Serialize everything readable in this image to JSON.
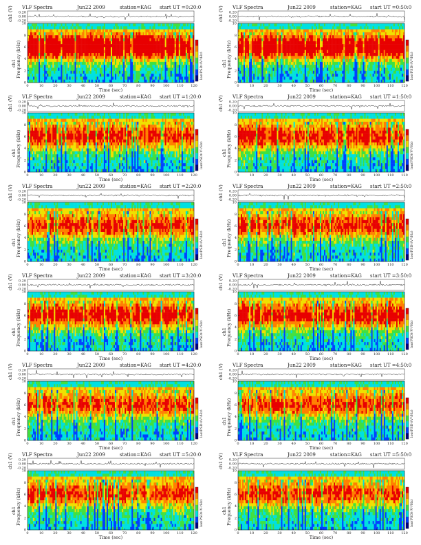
{
  "chart_data": [
    {
      "type": "heatmap",
      "title_left": "VLF Spectra",
      "date": "Jun22 2009",
      "station": "station=KAG",
      "start_ut": "start UT =0:20:0",
      "top_ylabel": "ch1 (V)",
      "top_ticks": [
        "0.20",
        "0.00",
        "-0.20"
      ],
      "ylabel_ch": "ch1",
      "ylabel": "Frequency (kHz)",
      "yticks": [
        "0",
        "2",
        "4",
        "6",
        "8",
        "10"
      ],
      "xlabel": "Time (sec)",
      "xticks": [
        "0",
        "10",
        "20",
        "30",
        "40",
        "50",
        "60",
        "70",
        "80",
        "90",
        "100",
        "110",
        "120"
      ],
      "colorbar_label": "log(PSD)(V²/Hz)",
      "xlim": [
        0,
        120
      ],
      "ylim": [
        0,
        10
      ],
      "seed": 11,
      "intensity": 0.85
    },
    {
      "type": "heatmap",
      "title_left": "VLF Spectra",
      "date": "Jun22 2009",
      "station": "station=KAG",
      "start_ut": "start UT =0:50:0",
      "top_ylabel": "ch1 (V)",
      "top_ticks": [
        "0.20",
        "0.00",
        "-0.20"
      ],
      "ylabel_ch": "ch1",
      "ylabel": "Frequency (kHz)",
      "yticks": [
        "0",
        "2",
        "4",
        "6",
        "8",
        "10"
      ],
      "xlabel": "Time (sec)",
      "xticks": [
        "0",
        "10",
        "20",
        "30",
        "40",
        "50",
        "60",
        "70",
        "80",
        "90",
        "100",
        "110",
        "120"
      ],
      "colorbar_label": "log(PSD)(V²/Hz)",
      "xlim": [
        0,
        120
      ],
      "ylim": [
        0,
        10
      ],
      "seed": 23,
      "intensity": 0.82
    },
    {
      "type": "heatmap",
      "title_left": "VLF Spectra",
      "date": "Jun22 2009",
      "station": "station=KAG",
      "start_ut": "start UT =1:20:0",
      "top_ylabel": "ch1 (V)",
      "top_ticks": [
        "0.20",
        "0.00",
        "-0.20"
      ],
      "ylabel_ch": "ch1",
      "ylabel": "Frequency (kHz)",
      "yticks": [
        "0",
        "2",
        "4",
        "6",
        "8",
        "10"
      ],
      "xlabel": "Time (sec)",
      "xticks": [
        "0",
        "10",
        "20",
        "30",
        "40",
        "50",
        "60",
        "70",
        "80",
        "90",
        "100",
        "110",
        "120"
      ],
      "colorbar_label": "log(PSD)(V²/Hz)",
      "xlim": [
        0,
        120
      ],
      "ylim": [
        0,
        10
      ],
      "seed": 37,
      "intensity": 0.6
    },
    {
      "type": "heatmap",
      "title_left": "VLF Spectra",
      "date": "Jun22 2009",
      "station": "station=KAG",
      "start_ut": "start UT =1:50:0",
      "top_ylabel": "ch1 (V)",
      "top_ticks": [
        "0.20",
        "0.00",
        "-0.20"
      ],
      "ylabel_ch": "ch1",
      "ylabel": "Frequency (kHz)",
      "yticks": [
        "0",
        "2",
        "4",
        "6",
        "8",
        "10"
      ],
      "xlabel": "Time (sec)",
      "xticks": [
        "0",
        "10",
        "20",
        "30",
        "40",
        "50",
        "60",
        "70",
        "80",
        "90",
        "100",
        "110",
        "120"
      ],
      "colorbar_label": "log(PSD)(V²/Hz)",
      "xlim": [
        0,
        120
      ],
      "ylim": [
        0,
        10
      ],
      "seed": 41,
      "intensity": 0.62
    },
    {
      "type": "heatmap",
      "title_left": "VLF Spectra",
      "date": "Jun22 2009",
      "station": "station=KAG",
      "start_ut": "start UT =2:20:0",
      "top_ylabel": "ch1 (V)",
      "top_ticks": [
        "0.20",
        "0.00",
        "-0.20"
      ],
      "ylabel_ch": "ch1",
      "ylabel": "Frequency (kHz)",
      "yticks": [
        "0",
        "2",
        "4",
        "6",
        "8",
        "10"
      ],
      "xlabel": "Time (sec)",
      "xticks": [
        "0",
        "10",
        "20",
        "30",
        "40",
        "50",
        "60",
        "70",
        "80",
        "90",
        "100",
        "110",
        "120"
      ],
      "colorbar_label": "log(PSD)(V²/Hz)",
      "xlim": [
        0,
        120
      ],
      "ylim": [
        0,
        10
      ],
      "seed": 53,
      "intensity": 0.58
    },
    {
      "type": "heatmap",
      "title_left": "VLF Spectra",
      "date": "Jun22 2009",
      "station": "station=KAG",
      "start_ut": "start UT =2:50:0",
      "top_ylabel": "ch1 (V)",
      "top_ticks": [
        "0.20",
        "0.00",
        "-0.20"
      ],
      "ylabel_ch": "ch1",
      "ylabel": "Frequency (kHz)",
      "yticks": [
        "0",
        "2",
        "4",
        "6",
        "8",
        "10"
      ],
      "xlabel": "Time (sec)",
      "xticks": [
        "0",
        "10",
        "20",
        "30",
        "40",
        "50",
        "60",
        "70",
        "80",
        "90",
        "100",
        "110",
        "120"
      ],
      "colorbar_label": "log(PSD)(V²/Hz)",
      "xlim": [
        0,
        120
      ],
      "ylim": [
        0,
        10
      ],
      "seed": 67,
      "intensity": 0.6
    },
    {
      "type": "heatmap",
      "title_left": "VLF Spectra",
      "date": "Jun22 2009",
      "station": "station=KAG",
      "start_ut": "start UT =3:20:0",
      "top_ylabel": "ch1 (V)",
      "top_ticks": [
        "0.20",
        "0.00",
        "-0.20"
      ],
      "ylabel_ch": "ch1",
      "ylabel": "Frequency (kHz)",
      "yticks": [
        "0",
        "2",
        "4",
        "6",
        "8",
        "10"
      ],
      "xlabel": "Time (sec)",
      "xticks": [
        "0",
        "10",
        "20",
        "30",
        "40",
        "50",
        "60",
        "70",
        "80",
        "90",
        "100",
        "110",
        "120"
      ],
      "colorbar_label": "log(PSD)(V²/Hz)",
      "xlim": [
        0,
        120
      ],
      "ylim": [
        0,
        10
      ],
      "seed": 71,
      "intensity": 0.65
    },
    {
      "type": "heatmap",
      "title_left": "VLF Spectra",
      "date": "Jun22 2009",
      "station": "station=KAG",
      "start_ut": "start UT =3:50:0",
      "top_ylabel": "ch1 (V)",
      "top_ticks": [
        "0.20",
        "0.00",
        "-0.20"
      ],
      "ylabel_ch": "ch1",
      "ylabel": "Frequency (kHz)",
      "yticks": [
        "0",
        "2",
        "4",
        "6",
        "8",
        "10"
      ],
      "xlabel": "Time (sec)",
      "xticks": [
        "0",
        "10",
        "20",
        "30",
        "40",
        "50",
        "60",
        "70",
        "80",
        "90",
        "100",
        "110",
        "120"
      ],
      "colorbar_label": "log(PSD)(V²/Hz)",
      "xlim": [
        0,
        120
      ],
      "ylim": [
        0,
        10
      ],
      "seed": 83,
      "intensity": 0.66
    },
    {
      "type": "heatmap",
      "title_left": "VLF Spectra",
      "date": "Jun22 2009",
      "station": "station=KAG",
      "start_ut": "start UT =4:20:0",
      "top_ylabel": "ch1 (V)",
      "top_ticks": [
        "0.20",
        "0.00",
        "-0.20"
      ],
      "ylabel_ch": "ch1",
      "ylabel": "Frequency (kHz)",
      "yticks": [
        "0",
        "2",
        "4",
        "6",
        "8",
        "10"
      ],
      "xlabel": "Time (sec)",
      "xticks": [
        "0",
        "10",
        "20",
        "30",
        "40",
        "50",
        "60",
        "70",
        "80",
        "90",
        "100",
        "110",
        "120"
      ],
      "colorbar_label": "log(PSD)(V²/Hz)",
      "xlim": [
        0,
        120
      ],
      "ylim": [
        0,
        10
      ],
      "seed": 97,
      "intensity": 0.55
    },
    {
      "type": "heatmap",
      "title_left": "VLF Spectra",
      "date": "Jun22 2009",
      "station": "station=KAG",
      "start_ut": "start UT =4:50:0",
      "top_ylabel": "ch1 (V)",
      "top_ticks": [
        "0.20",
        "0.00",
        "-0.20"
      ],
      "ylabel_ch": "ch1",
      "ylabel": "Frequency (kHz)",
      "yticks": [
        "0",
        "2",
        "4",
        "6",
        "8",
        "10"
      ],
      "xlabel": "Time (sec)",
      "xticks": [
        "0",
        "10",
        "20",
        "30",
        "40",
        "50",
        "60",
        "70",
        "80",
        "90",
        "100",
        "110",
        "120"
      ],
      "colorbar_label": "log(PSD)(V²/Hz)",
      "xlim": [
        0,
        120
      ],
      "ylim": [
        0,
        10
      ],
      "seed": 101,
      "intensity": 0.56
    },
    {
      "type": "heatmap",
      "title_left": "VLF Spectra",
      "date": "Jun22 2009",
      "station": "station=KAG",
      "start_ut": "start UT =5:20:0",
      "top_ylabel": "ch1 (V)",
      "top_ticks": [
        "0.20",
        "0.00",
        "-0.20"
      ],
      "ylabel_ch": "ch1",
      "ylabel": "Frequency (kHz)",
      "yticks": [
        "0",
        "2",
        "4",
        "6",
        "8",
        "10"
      ],
      "xlabel": "Time (sec)",
      "xticks": [
        "0",
        "10",
        "20",
        "30",
        "40",
        "50",
        "60",
        "70",
        "80",
        "90",
        "100",
        "110",
        "120"
      ],
      "colorbar_label": "log(PSD)(V²/Hz)",
      "xlim": [
        0,
        120
      ],
      "ylim": [
        0,
        10
      ],
      "seed": 113,
      "intensity": 0.55
    },
    {
      "type": "heatmap",
      "title_left": "VLF Spectra",
      "date": "Jun22 2009",
      "station": "station=KAG",
      "start_ut": "start UT =5:50:0",
      "top_ylabel": "ch1 (V)",
      "top_ticks": [
        "0.20",
        "0.00",
        "-0.20"
      ],
      "ylabel_ch": "ch1",
      "ylabel": "Frequency (kHz)",
      "yticks": [
        "0",
        "2",
        "4",
        "6",
        "8",
        "10"
      ],
      "xlabel": "Time (sec)",
      "xticks": [
        "0",
        "10",
        "20",
        "30",
        "40",
        "50",
        "60",
        "70",
        "80",
        "90",
        "100",
        "110",
        "120"
      ],
      "colorbar_label": "log(PSD)(V²/Hz)",
      "xlim": [
        0,
        120
      ],
      "ylim": [
        0,
        10
      ],
      "seed": 127,
      "intensity": 0.56
    }
  ],
  "colors": {
    "dark_blue": "#00007f",
    "blue": "#0040ff",
    "cyan": "#00e0e0",
    "green": "#40e040",
    "yellow": "#f0e000",
    "orange": "#ff8000",
    "red": "#e80000",
    "axis": "#222222"
  }
}
